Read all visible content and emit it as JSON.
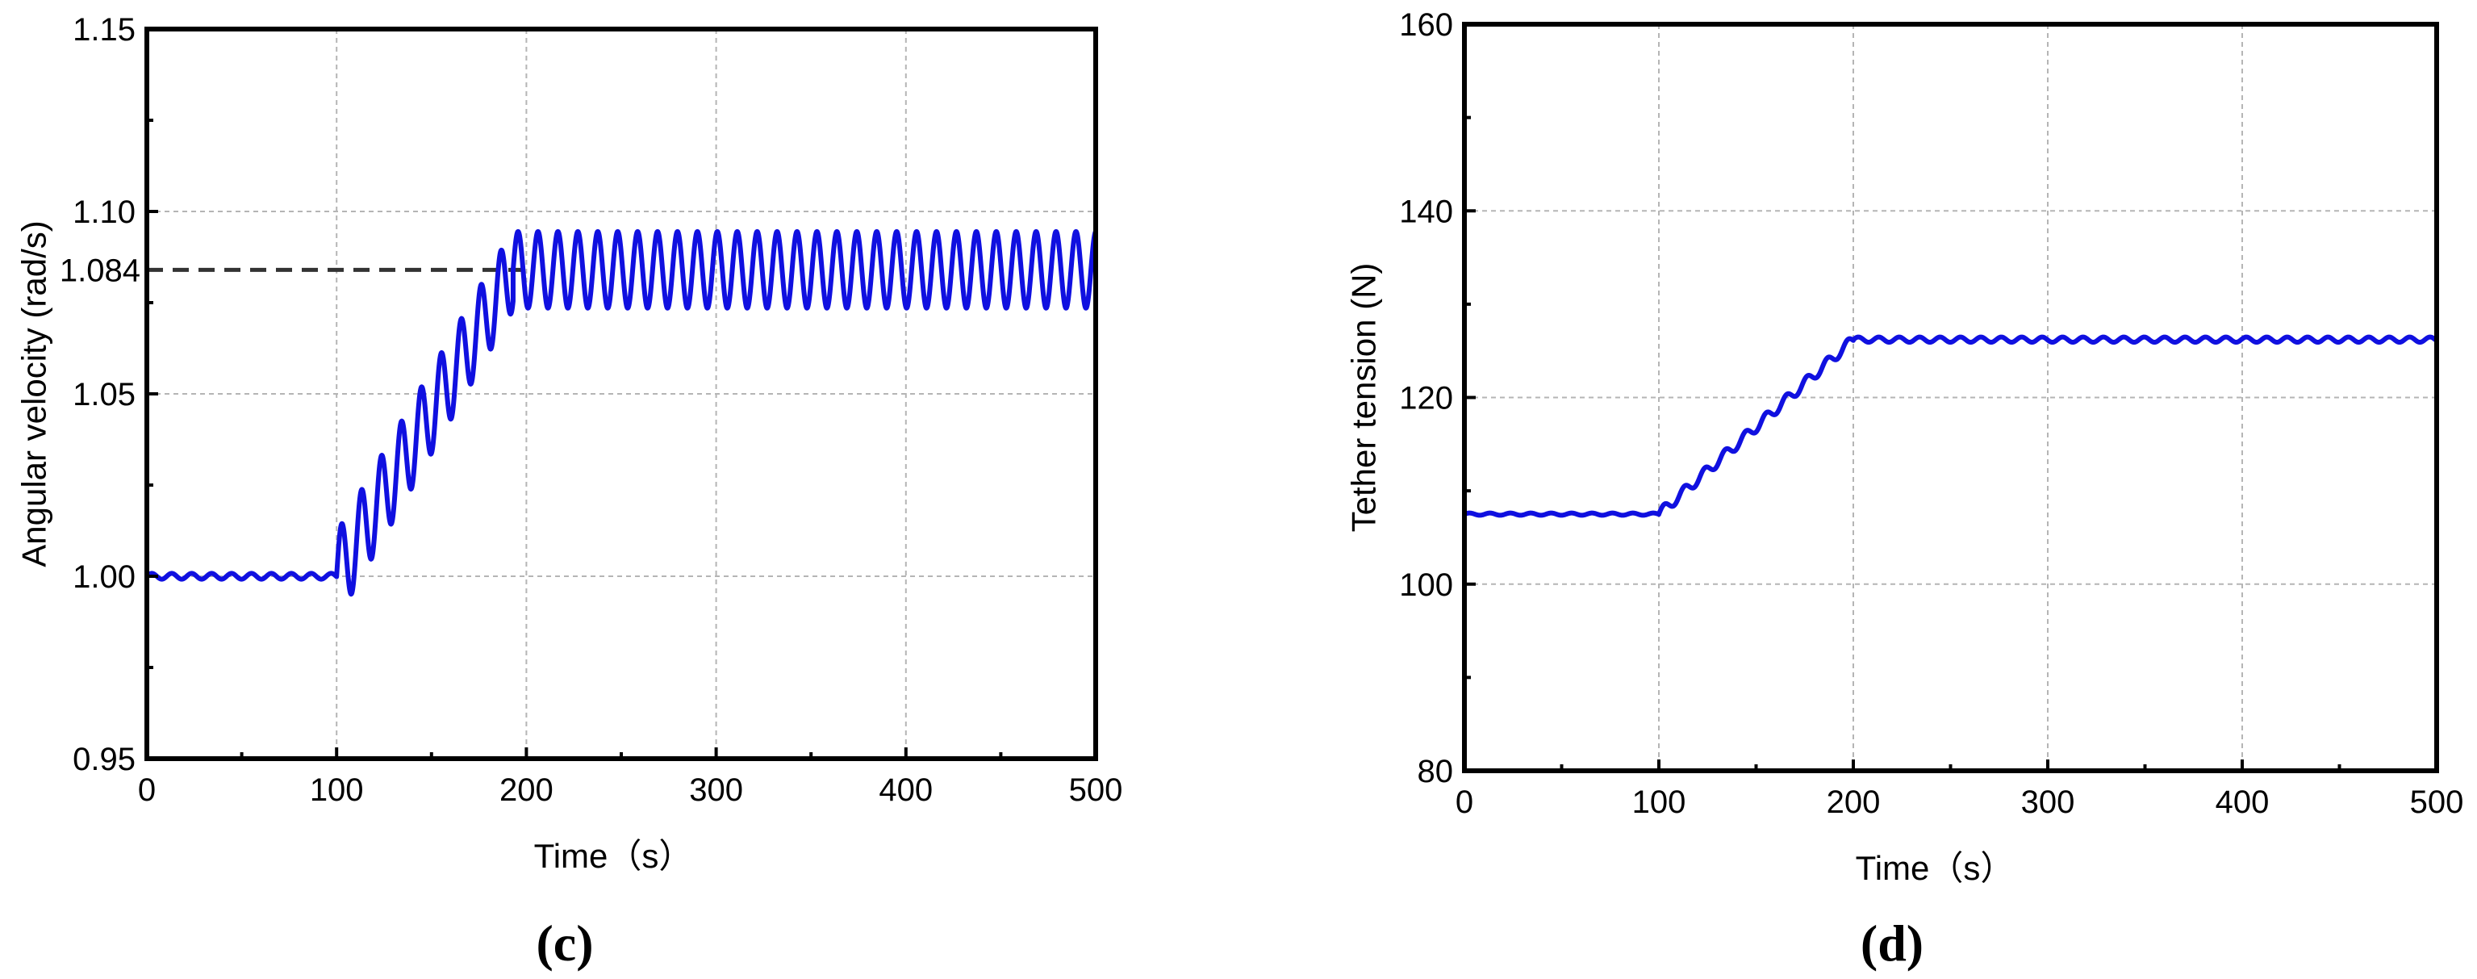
{
  "chart_data": [
    {
      "type": "line",
      "panel_label": "(c)",
      "xlabel": "Time（s）",
      "ylabel": "Angular velocity (rad/s)",
      "xlim": [
        0,
        500
      ],
      "ylim": [
        0.95,
        1.15
      ],
      "xticks": [
        "0",
        "100",
        "200",
        "300",
        "400",
        "500"
      ],
      "yticks": [
        "0.95",
        "1.00",
        "1.05",
        "1.10",
        "1.15"
      ],
      "annotation": {
        "label": "1.084",
        "y": 1.084,
        "style": "dashed"
      },
      "grid": true,
      "series": [
        {
          "color": "#1010e0",
          "segments": [
            {
              "t_start": 0,
              "t_end": 100,
              "base": 1.0,
              "amplitude": 0.0008,
              "period": 10.5
            },
            {
              "t_start": 100,
              "t_end": 193,
              "base_start": 1.0,
              "base_end": 1.084,
              "amplitude_start": 0.012,
              "amplitude_end": 0.011,
              "period": 10.5
            },
            {
              "t_start": 193,
              "t_end": 500,
              "base": 1.084,
              "amplitude": 0.0105,
              "period": 10.5
            }
          ]
        }
      ]
    },
    {
      "type": "line",
      "panel_label": "(d)",
      "xlabel": "Time（s）",
      "ylabel": "Tether tension (N)",
      "xlim": [
        0,
        500
      ],
      "ylim": [
        80,
        160
      ],
      "xticks": [
        "0",
        "100",
        "200",
        "300",
        "400",
        "500"
      ],
      "yticks": [
        "80",
        "100",
        "120",
        "140",
        "160"
      ],
      "grid": true,
      "series": [
        {
          "color": "#1010e0",
          "segments": [
            {
              "t_start": 0,
              "t_end": 100,
              "base": 107.5,
              "amplitude": 0.12,
              "period": 10.5
            },
            {
              "t_start": 100,
              "t_end": 200,
              "base_start": 107.5,
              "base_end": 126.2,
              "amplitude_start": 0.55,
              "amplitude_end": 0.55,
              "period": 10.5
            },
            {
              "t_start": 200,
              "t_end": 500,
              "base": 126.2,
              "amplitude": 0.28,
              "period": 10.5
            }
          ]
        }
      ]
    }
  ]
}
